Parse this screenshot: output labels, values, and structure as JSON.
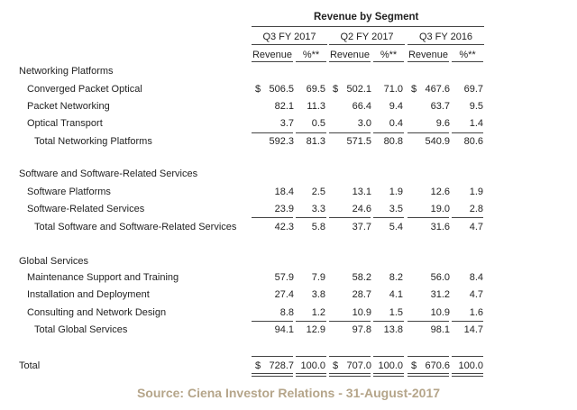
{
  "table": {
    "title": "Revenue by Segment",
    "periods": [
      "Q3 FY 2017",
      "Q2 FY 2017",
      "Q3 FY 2016"
    ],
    "subheaders": [
      "Revenue",
      "%**",
      "Revenue",
      "%**",
      "Revenue",
      "%**"
    ],
    "currency_symbol": "$",
    "rows": [
      {
        "label": "Networking Platforms",
        "kind": "section",
        "values": []
      },
      {
        "label": "Converged Packet Optical",
        "kind": "item",
        "dollar": true,
        "values": [
          "506.5",
          "69.5",
          "502.1",
          "71.0",
          "467.6",
          "69.7"
        ]
      },
      {
        "label": "Packet Networking",
        "kind": "item",
        "values": [
          "82.1",
          "11.3",
          "66.4",
          "9.4",
          "63.7",
          "9.5"
        ]
      },
      {
        "label": "Optical Transport",
        "kind": "item",
        "values": [
          "3.7",
          "0.5",
          "3.0",
          "0.4",
          "9.6",
          "1.4"
        ]
      },
      {
        "label": "Total Networking Platforms",
        "kind": "total",
        "values": [
          "592.3",
          "81.3",
          "571.5",
          "80.8",
          "540.9",
          "80.6"
        ]
      },
      {
        "label": "Software and Software-Related Services",
        "kind": "section",
        "values": []
      },
      {
        "label": "Software Platforms",
        "kind": "item",
        "values": [
          "18.4",
          "2.5",
          "13.1",
          "1.9",
          "12.6",
          "1.9"
        ]
      },
      {
        "label": "Software-Related Services",
        "kind": "item",
        "values": [
          "23.9",
          "3.3",
          "24.6",
          "3.5",
          "19.0",
          "2.8"
        ]
      },
      {
        "label": "Total Software and Software-Related Services",
        "kind": "total",
        "values": [
          "42.3",
          "5.8",
          "37.7",
          "5.4",
          "31.6",
          "4.7"
        ]
      },
      {
        "label": "Global Services",
        "kind": "section",
        "values": []
      },
      {
        "label": "Maintenance Support and Training",
        "kind": "item",
        "values": [
          "57.9",
          "7.9",
          "58.2",
          "8.2",
          "56.0",
          "8.4"
        ]
      },
      {
        "label": "Installation and Deployment",
        "kind": "item",
        "values": [
          "27.4",
          "3.8",
          "28.7",
          "4.1",
          "31.2",
          "4.7"
        ]
      },
      {
        "label": "Consulting and Network Design",
        "kind": "item",
        "values": [
          "8.8",
          "1.2",
          "10.9",
          "1.5",
          "10.9",
          "1.6"
        ]
      },
      {
        "label": "Total Global Services",
        "kind": "total",
        "values": [
          "94.1",
          "12.9",
          "97.8",
          "13.8",
          "98.1",
          "14.7"
        ]
      },
      {
        "label": "Total",
        "kind": "grand",
        "dollar": true,
        "values": [
          "728.7",
          "100.0",
          "707.0",
          "100.0",
          "670.6",
          "100.0"
        ]
      }
    ]
  },
  "source": "Source: Ciena Investor Relations - 31-August-2017"
}
